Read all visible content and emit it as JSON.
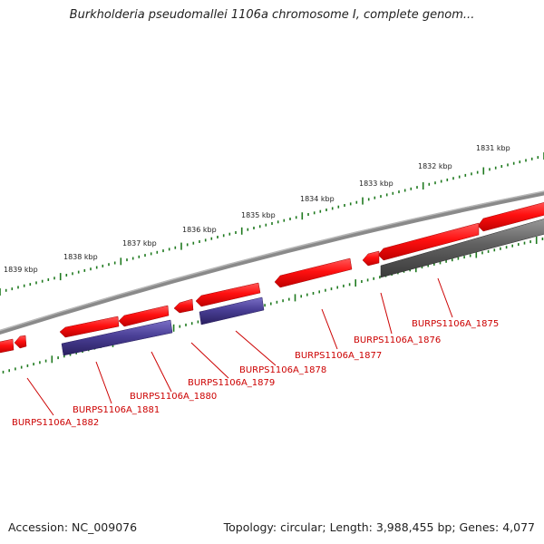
{
  "title": "Burkholderia pseudomallei 1106a chromosome I, complete genom...",
  "footer": {
    "accession": "Accession: NC_009076",
    "topology": "Topology: circular; Length: 3,988,455 bp; Genes: 4,077"
  },
  "colors": {
    "gene_forward": "#ff1010",
    "gene_forward_dark": "#b00000",
    "gene_reverse": "#4a3f96",
    "gene_reverse_dark": "#2a2060",
    "gene_grey": "#606060",
    "backbone": "#7a7a7a",
    "tick": "#1f7a1f",
    "label": "#cc0000"
  },
  "kbp_labels": [
    "1831 kbp",
    "1832 kbp",
    "1833 kbp",
    "1834 kbp",
    "1835 kbp",
    "1836 kbp",
    "1837 kbp",
    "1838 kbp",
    "1839 kbp"
  ],
  "genes": [
    {
      "label": "BURPS1106A_1875",
      "strand": "forward-lower",
      "color": "gene_grey"
    },
    {
      "label": "BURPS1106A_1876",
      "strand": "forward",
      "color": "gene_forward"
    },
    {
      "label": "BURPS1106A_1877",
      "strand": "forward",
      "color": "gene_forward"
    },
    {
      "label": "BURPS1106A_1878",
      "strand": "reverse",
      "color": "gene_reverse"
    },
    {
      "label": "BURPS1106A_1879",
      "strand": "forward",
      "color": "gene_forward"
    },
    {
      "label": "BURPS1106A_1880",
      "strand": "reverse",
      "color": "gene_reverse"
    },
    {
      "label": "BURPS1106A_1881",
      "strand": "forward",
      "color": "gene_forward"
    },
    {
      "label": "BURPS1106A_1882",
      "strand": "forward",
      "color": "gene_forward"
    }
  ]
}
